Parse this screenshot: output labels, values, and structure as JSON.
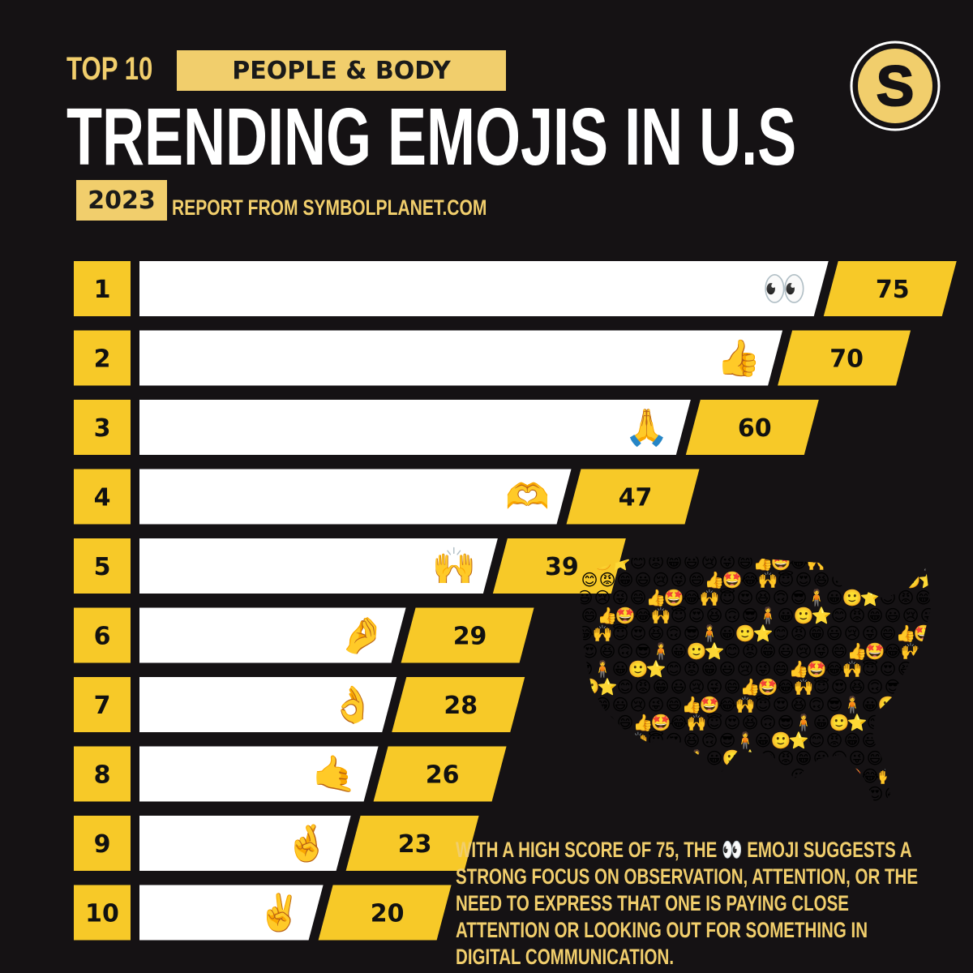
{
  "header": {
    "top_label": "TOP 10",
    "category": "PEOPLE & BODY",
    "title": "TRENDING EMOJIS IN U.S",
    "year": "2023",
    "source": "REPORT FROM SYMBOLPLANET.COM",
    "logo_letter": "S"
  },
  "colors": {
    "background": "#151214",
    "accent": "#f1ce6c",
    "bar_value": "#f7c928",
    "bar_white": "#ffffff"
  },
  "chart_data": {
    "type": "bar",
    "orientation": "horizontal",
    "categories": [
      "1",
      "2",
      "3",
      "4",
      "5",
      "6",
      "7",
      "8",
      "9",
      "10"
    ],
    "emojis": [
      "👀",
      "👍",
      "🙏",
      "🫶",
      "🙌",
      "🤌",
      "👌",
      "🤙",
      "🤞",
      "✌️"
    ],
    "values": [
      75,
      70,
      60,
      47,
      39,
      29,
      28,
      26,
      23,
      20
    ],
    "title": "",
    "xlabel": "",
    "ylabel": "",
    "grid": false,
    "legend": "none"
  },
  "map_emojis": [
    "😀",
    "😊",
    "😃",
    "😄",
    "😂",
    "😍",
    "😎",
    "🙂",
    "😡",
    "😢",
    "👍",
    "🙌",
    "😆",
    "🧍",
    "⭐",
    "😁",
    "😜",
    "🤩",
    "😇",
    "🙃"
  ],
  "description": "WITH A HIGH SCORE OF 75, THE 👀 EMOJI SUGGESTS A STRONG FOCUS ON OBSERVATION, ATTENTION, OR THE NEED TO EXPRESS THAT ONE IS PAYING CLOSE ATTENTION OR LOOKING OUT FOR SOMETHING IN DIGITAL COMMUNICATION."
}
